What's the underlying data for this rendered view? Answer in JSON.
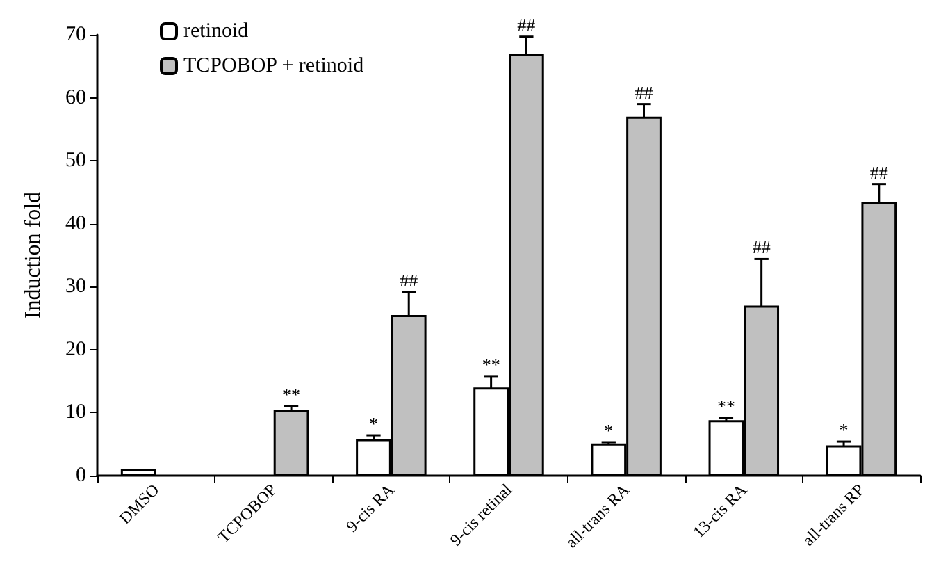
{
  "chart_data": {
    "type": "bar",
    "ylabel": "Induction fold",
    "categories": [
      "DMSO",
      "TCPOBOP",
      "9-cis RA",
      "9-cis retinal",
      "all-trans RA",
      "13-cis RA",
      "all-trans RP"
    ],
    "series": [
      {
        "name": "retinoid",
        "color": "#ffffff",
        "values": [
          1.0,
          null,
          5.8,
          14,
          5.1,
          8.8,
          4.8
        ],
        "errors": [
          null,
          null,
          0.6,
          1.8,
          0.2,
          0.4,
          0.6
        ]
      },
      {
        "name": "TCPOBOP + retinoid",
        "color": "#c0c0c0",
        "values": [
          null,
          10.5,
          25.5,
          67,
          57,
          27,
          43.5
        ],
        "errors": [
          null,
          0.5,
          3.7,
          2.7,
          2,
          7.4,
          2.8
        ]
      }
    ],
    "ylim": [
      0,
      70
    ],
    "yticks": [
      0,
      10,
      20,
      30,
      40,
      50,
      60,
      70
    ],
    "grid": false,
    "legend": "top left",
    "annotations": [
      {
        "text": "**",
        "x": "TCPOBOP",
        "y": 10.5
      },
      {
        "text": "*",
        "x": "9-cis RA",
        "y": 5.8
      },
      {
        "text": "##",
        "x": "9-cis RA",
        "y": 25.5
      },
      {
        "text": "**",
        "x": "9-cis retinal",
        "y": 14
      },
      {
        "text": "##",
        "x": "9-cis retinal",
        "y": 67
      },
      {
        "text": "*",
        "x": "all-trans RA",
        "y": 5.1
      },
      {
        "text": "##",
        "x": "all-trans RA",
        "y": 57
      },
      {
        "text": "**",
        "x": "13-cis RA",
        "y": 8.8
      },
      {
        "text": "##",
        "x": "13-cis RA",
        "y": 27
      },
      {
        "text": "*",
        "x": "all-trans RP",
        "y": 4.8
      },
      {
        "text": "##",
        "x": "all-trans RP",
        "y": 43.5
      }
    ]
  }
}
